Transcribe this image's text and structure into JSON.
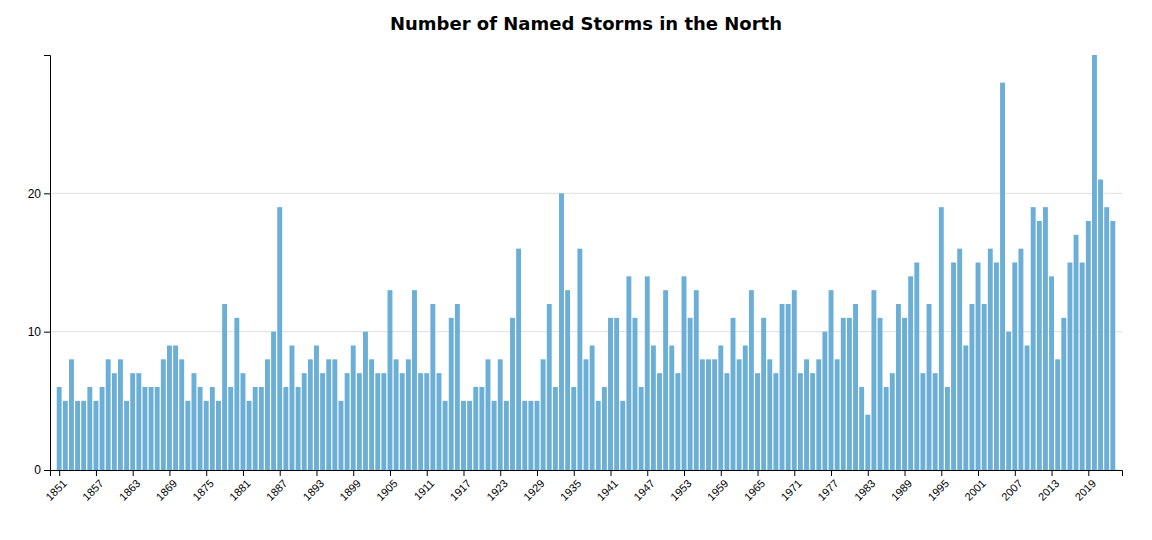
{
  "chart_data": {
    "type": "bar",
    "title": "Number of Named Storms in the North",
    "x": [
      1851,
      1852,
      1853,
      1854,
      1855,
      1856,
      1857,
      1858,
      1859,
      1860,
      1861,
      1862,
      1863,
      1864,
      1865,
      1866,
      1867,
      1868,
      1869,
      1870,
      1871,
      1872,
      1873,
      1874,
      1875,
      1876,
      1877,
      1878,
      1879,
      1880,
      1881,
      1882,
      1883,
      1884,
      1885,
      1886,
      1887,
      1888,
      1889,
      1890,
      1891,
      1892,
      1893,
      1894,
      1895,
      1896,
      1897,
      1898,
      1899,
      1900,
      1901,
      1902,
      1903,
      1904,
      1905,
      1906,
      1907,
      1908,
      1909,
      1910,
      1911,
      1912,
      1913,
      1914,
      1915,
      1916,
      1917,
      1918,
      1919,
      1920,
      1921,
      1922,
      1923,
      1924,
      1925,
      1926,
      1927,
      1928,
      1929,
      1930,
      1931,
      1932,
      1933,
      1934,
      1935,
      1936,
      1937,
      1938,
      1939,
      1940,
      1941,
      1942,
      1943,
      1944,
      1945,
      1946,
      1947,
      1948,
      1949,
      1950,
      1951,
      1952,
      1953,
      1954,
      1955,
      1956,
      1957,
      1958,
      1959,
      1960,
      1961,
      1962,
      1963,
      1964,
      1965,
      1966,
      1967,
      1968,
      1969,
      1970,
      1971,
      1972,
      1973,
      1974,
      1975,
      1976,
      1977,
      1978,
      1979,
      1980,
      1981,
      1982,
      1983,
      1984,
      1985,
      1986,
      1987,
      1988,
      1989,
      1990,
      1991,
      1992,
      1993,
      1994,
      1995,
      1996,
      1997,
      1998,
      1999,
      2000,
      2001,
      2002,
      2003,
      2004,
      2005,
      2006,
      2007,
      2008,
      2009,
      2010,
      2011,
      2012,
      2013,
      2014,
      2015,
      2016,
      2017,
      2018,
      2019,
      2020,
      2021,
      2022,
      2023
    ],
    "values": [
      6,
      5,
      8,
      5,
      5,
      6,
      5,
      6,
      8,
      7,
      8,
      5,
      7,
      7,
      6,
      6,
      6,
      8,
      9,
      9,
      8,
      5,
      7,
      6,
      5,
      6,
      5,
      12,
      6,
      11,
      7,
      5,
      6,
      6,
      8,
      10,
      19,
      6,
      9,
      6,
      7,
      8,
      9,
      7,
      8,
      8,
      5,
      7,
      9,
      7,
      10,
      8,
      7,
      7,
      13,
      8,
      7,
      8,
      13,
      7,
      7,
      12,
      7,
      5,
      11,
      12,
      5,
      5,
      6,
      6,
      8,
      5,
      8,
      5,
      11,
      16,
      5,
      5,
      5,
      8,
      12,
      6,
      20,
      13,
      6,
      16,
      8,
      9,
      5,
      6,
      11,
      11,
      5,
      14,
      11,
      6,
      14,
      9,
      7,
      13,
      9,
      7,
      14,
      11,
      13,
      8,
      8,
      8,
      9,
      7,
      11,
      8,
      9,
      13,
      7,
      11,
      8,
      7,
      12,
      12,
      13,
      7,
      8,
      7,
      8,
      10,
      13,
      8,
      11,
      11,
      12,
      6,
      4,
      13,
      11,
      6,
      7,
      12,
      11,
      14,
      15,
      7,
      12,
      7,
      19,
      6,
      15,
      16,
      9,
      12,
      15,
      12,
      16,
      15,
      28,
      10,
      15,
      16,
      9,
      19,
      18,
      19,
      14,
      8,
      11,
      15,
      17,
      15,
      18,
      30,
      21,
      19,
      18
    ],
    "color": "#6baed6",
    "xlim": [
      1849.5,
      2024.5
    ],
    "xticks": [
      1851,
      1857,
      1863,
      1869,
      1875,
      1881,
      1887,
      1893,
      1899,
      1905,
      1911,
      1917,
      1923,
      1929,
      1935,
      1941,
      1947,
      1953,
      1959,
      1965,
      1971,
      1977,
      1983,
      1989,
      1995,
      2001,
      2007,
      2013,
      2019
    ],
    "ylim": [
      0,
      30
    ],
    "yticks": [
      0,
      10,
      20
    ],
    "grid": true
  }
}
